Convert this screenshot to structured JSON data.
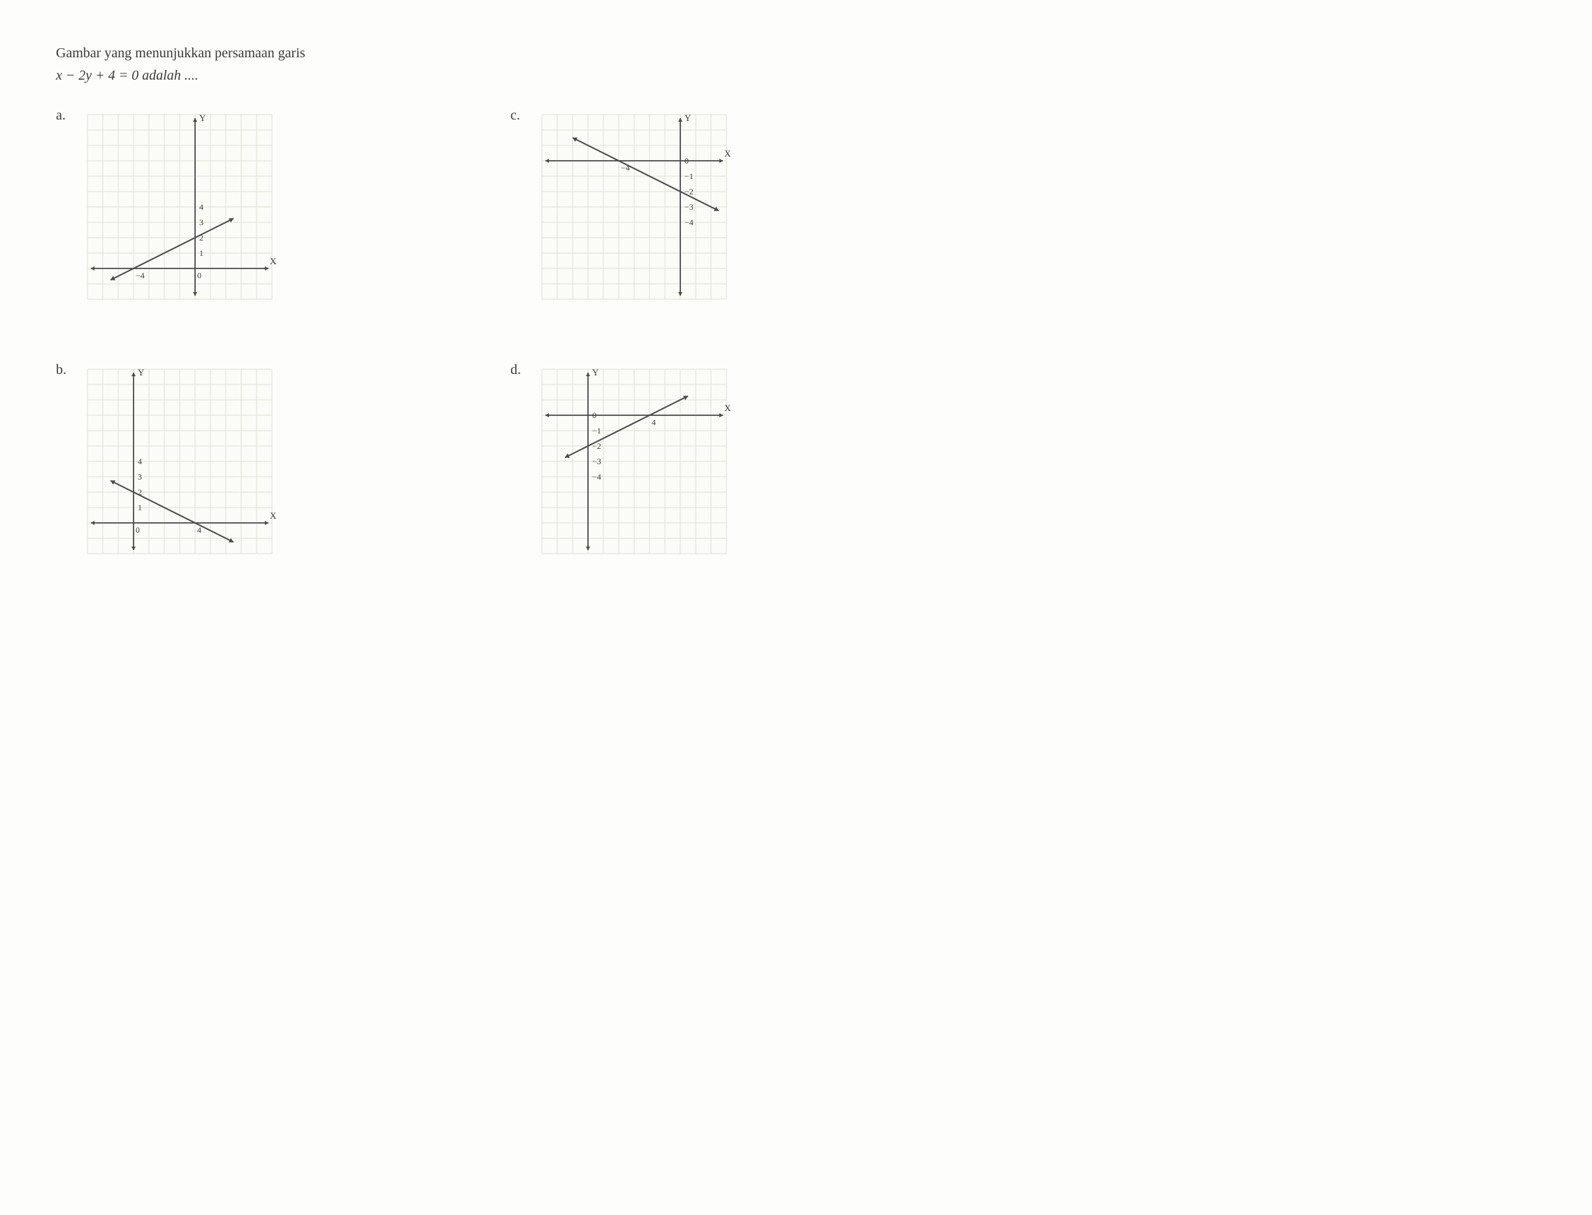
{
  "question": {
    "line1": "Gambar yang menunjukkan persamaan garis",
    "equation": "x − 2y + 4 = 0 adalah ...."
  },
  "graphs": {
    "cell_size": 22,
    "grid_cells": 12,
    "grid_color": "#e0e0d8",
    "bg_color": "#fbfbf7",
    "axis_color": "#4a4a4a",
    "line_color": "#4a4a4a",
    "label_color": "#3a3a3a",
    "axis_label_fontsize": 13,
    "tick_label_fontsize": 12,
    "arrow_size": 6
  },
  "options": [
    {
      "label": "a.",
      "origin_col": 7,
      "origin_row": 10,
      "x_label": "X",
      "y_label": "Y",
      "x_ticks": [
        {
          "v": -4,
          "label": "−4"
        },
        {
          "v": 0,
          "label": "0"
        }
      ],
      "y_ticks": [
        {
          "v": 1,
          "label": "1"
        },
        {
          "v": 2,
          "label": "2"
        },
        {
          "v": 3,
          "label": "3"
        },
        {
          "v": 4,
          "label": "4"
        }
      ],
      "line": {
        "x1": -5.5,
        "y1": -0.75,
        "x2": 2.5,
        "y2": 3.25
      }
    },
    {
      "label": "c.",
      "origin_col": 9,
      "origin_row": 3,
      "x_label": "X",
      "y_label": "Y",
      "x_ticks": [
        {
          "v": -4,
          "label": "−4"
        }
      ],
      "y_ticks": [
        {
          "v": 0,
          "label": "0"
        },
        {
          "v": -1,
          "label": "−1"
        },
        {
          "v": -2,
          "label": "−2"
        },
        {
          "v": -3,
          "label": "−3"
        },
        {
          "v": -4,
          "label": "−4"
        }
      ],
      "line": {
        "x1": -7,
        "y1": 1.5,
        "x2": 2.5,
        "y2": -3.25
      }
    },
    {
      "label": "b.",
      "origin_col": 3,
      "origin_row": 10,
      "x_label": "X",
      "y_label": "Y",
      "x_ticks": [
        {
          "v": 0,
          "label": "0"
        },
        {
          "v": 4,
          "label": "4"
        }
      ],
      "y_ticks": [
        {
          "v": 1,
          "label": "1"
        },
        {
          "v": 2,
          "label": "2"
        },
        {
          "v": 3,
          "label": "3"
        },
        {
          "v": 4,
          "label": "4"
        }
      ],
      "line": {
        "x1": -1.5,
        "y1": 2.75,
        "x2": 6.5,
        "y2": -1.25
      }
    },
    {
      "label": "d.",
      "origin_col": 3,
      "origin_row": 3,
      "x_label": "X",
      "y_label": "Y",
      "x_ticks": [
        {
          "v": 4,
          "label": "4"
        }
      ],
      "y_ticks": [
        {
          "v": 0,
          "label": "0"
        },
        {
          "v": -1,
          "label": "−1"
        },
        {
          "v": -2,
          "label": "−2"
        },
        {
          "v": -3,
          "label": "−3"
        },
        {
          "v": -4,
          "label": "−4"
        }
      ],
      "line": {
        "x1": -1.5,
        "y1": -2.75,
        "x2": 6.5,
        "y2": 1.25
      }
    }
  ]
}
